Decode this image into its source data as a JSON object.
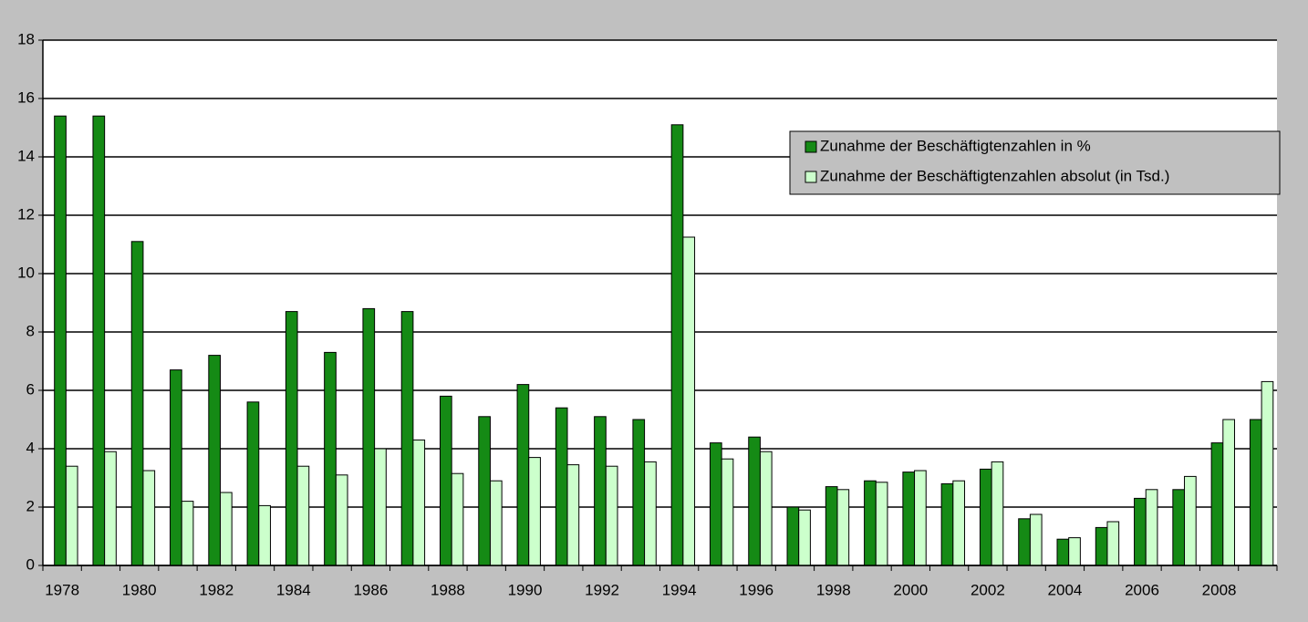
{
  "chart_data": {
    "type": "bar",
    "categories": [
      "1978",
      null,
      "1980",
      null,
      "1982",
      null,
      "1984",
      null,
      "1986",
      null,
      "1988",
      null,
      "1990",
      null,
      "1992",
      null,
      "1994",
      null,
      "1996",
      null,
      "1998",
      null,
      "2000",
      null,
      "2002",
      null,
      "2004",
      null,
      "2006",
      null,
      "2008",
      null
    ],
    "series": [
      {
        "name": "Zunahme der Beschäftigtenzahlen in %",
        "color": "#158a15",
        "values": [
          15.4,
          15.4,
          11.1,
          6.7,
          7.2,
          5.6,
          8.7,
          7.3,
          8.8,
          8.7,
          5.8,
          5.1,
          6.2,
          5.4,
          5.1,
          5.0,
          15.1,
          4.2,
          4.4,
          2.0,
          2.7,
          2.9,
          3.2,
          2.8,
          3.3,
          1.6,
          0.9,
          1.3,
          2.3,
          2.6,
          4.2,
          5.0
        ]
      },
      {
        "name": "Zunahme der Beschäftigtenzahlen absolut (in Tsd.)",
        "color": "#ccffcc",
        "values": [
          3.4,
          3.9,
          3.25,
          2.2,
          2.5,
          2.05,
          3.4,
          3.1,
          4.0,
          4.3,
          3.15,
          2.9,
          3.7,
          3.45,
          3.4,
          3.55,
          11.25,
          3.65,
          3.9,
          1.9,
          2.6,
          2.85,
          3.25,
          2.9,
          3.55,
          1.75,
          0.95,
          1.5,
          2.6,
          3.05,
          5.0,
          6.3
        ]
      }
    ],
    "ylim": [
      0,
      18
    ],
    "yticks": [
      0,
      2,
      4,
      6,
      8,
      10,
      12,
      14,
      16,
      18
    ],
    "grid": true,
    "legend": "top-right"
  }
}
